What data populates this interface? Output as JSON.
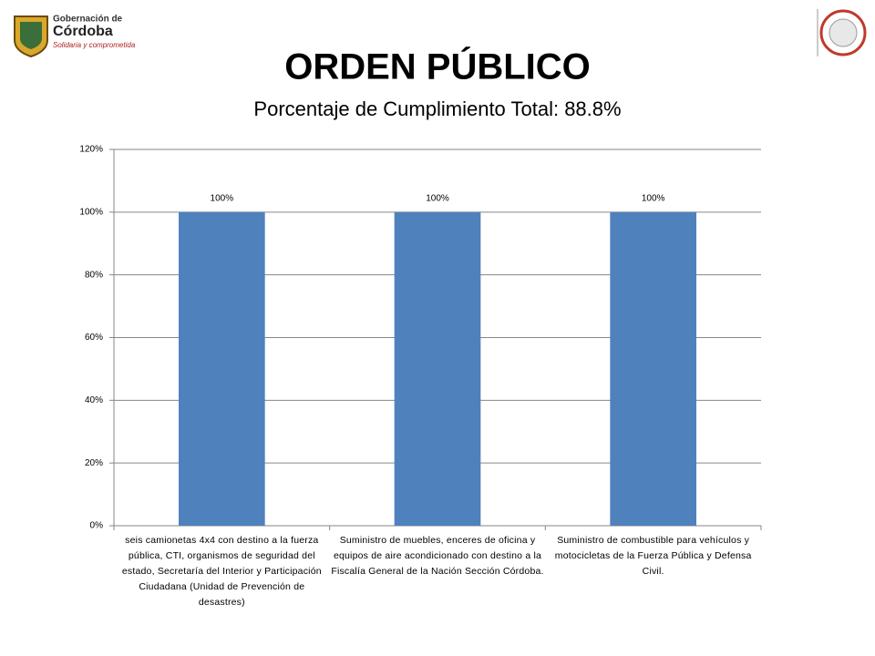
{
  "logo": {
    "line1": "Gobernación de",
    "line2": "Córdoba",
    "line3": "Solidaria y comprometida"
  },
  "chart_data": {
    "type": "bar",
    "title": "ORDEN PÚBLICO",
    "subtitle": "Porcentaje de Cumplimiento Total: 88.8%",
    "categories": [
      "seis camionetas 4x4 con destino a la fuerza pública, CTI, organismos de seguridad del estado, Secretaría del Interior y Participación Ciudadana (Unidad de Prevención de desastres)",
      "Suministro de muebles, enceres de oficina y equipos de aire acondicionado con destino a la Fiscalía General de la Nación Sección Córdoba.",
      "Suministro de combustible para vehículos y motocicletas de la Fuerza Pública y Defensa Civil."
    ],
    "values": [
      100,
      100,
      100
    ],
    "value_labels": [
      "100%",
      "100%",
      "100%"
    ],
    "color": "#4f81bd",
    "ylim": [
      0,
      120
    ],
    "yticks": [
      {
        "value": 0,
        "label": "0%"
      },
      {
        "value": 20,
        "label": "20%"
      },
      {
        "value": 40,
        "label": "40%"
      },
      {
        "value": 60,
        "label": "60%"
      },
      {
        "value": 80,
        "label": "80%"
      },
      {
        "value": 100,
        "label": "100%"
      },
      {
        "value": 120,
        "label": "120%"
      }
    ],
    "grid": true
  }
}
